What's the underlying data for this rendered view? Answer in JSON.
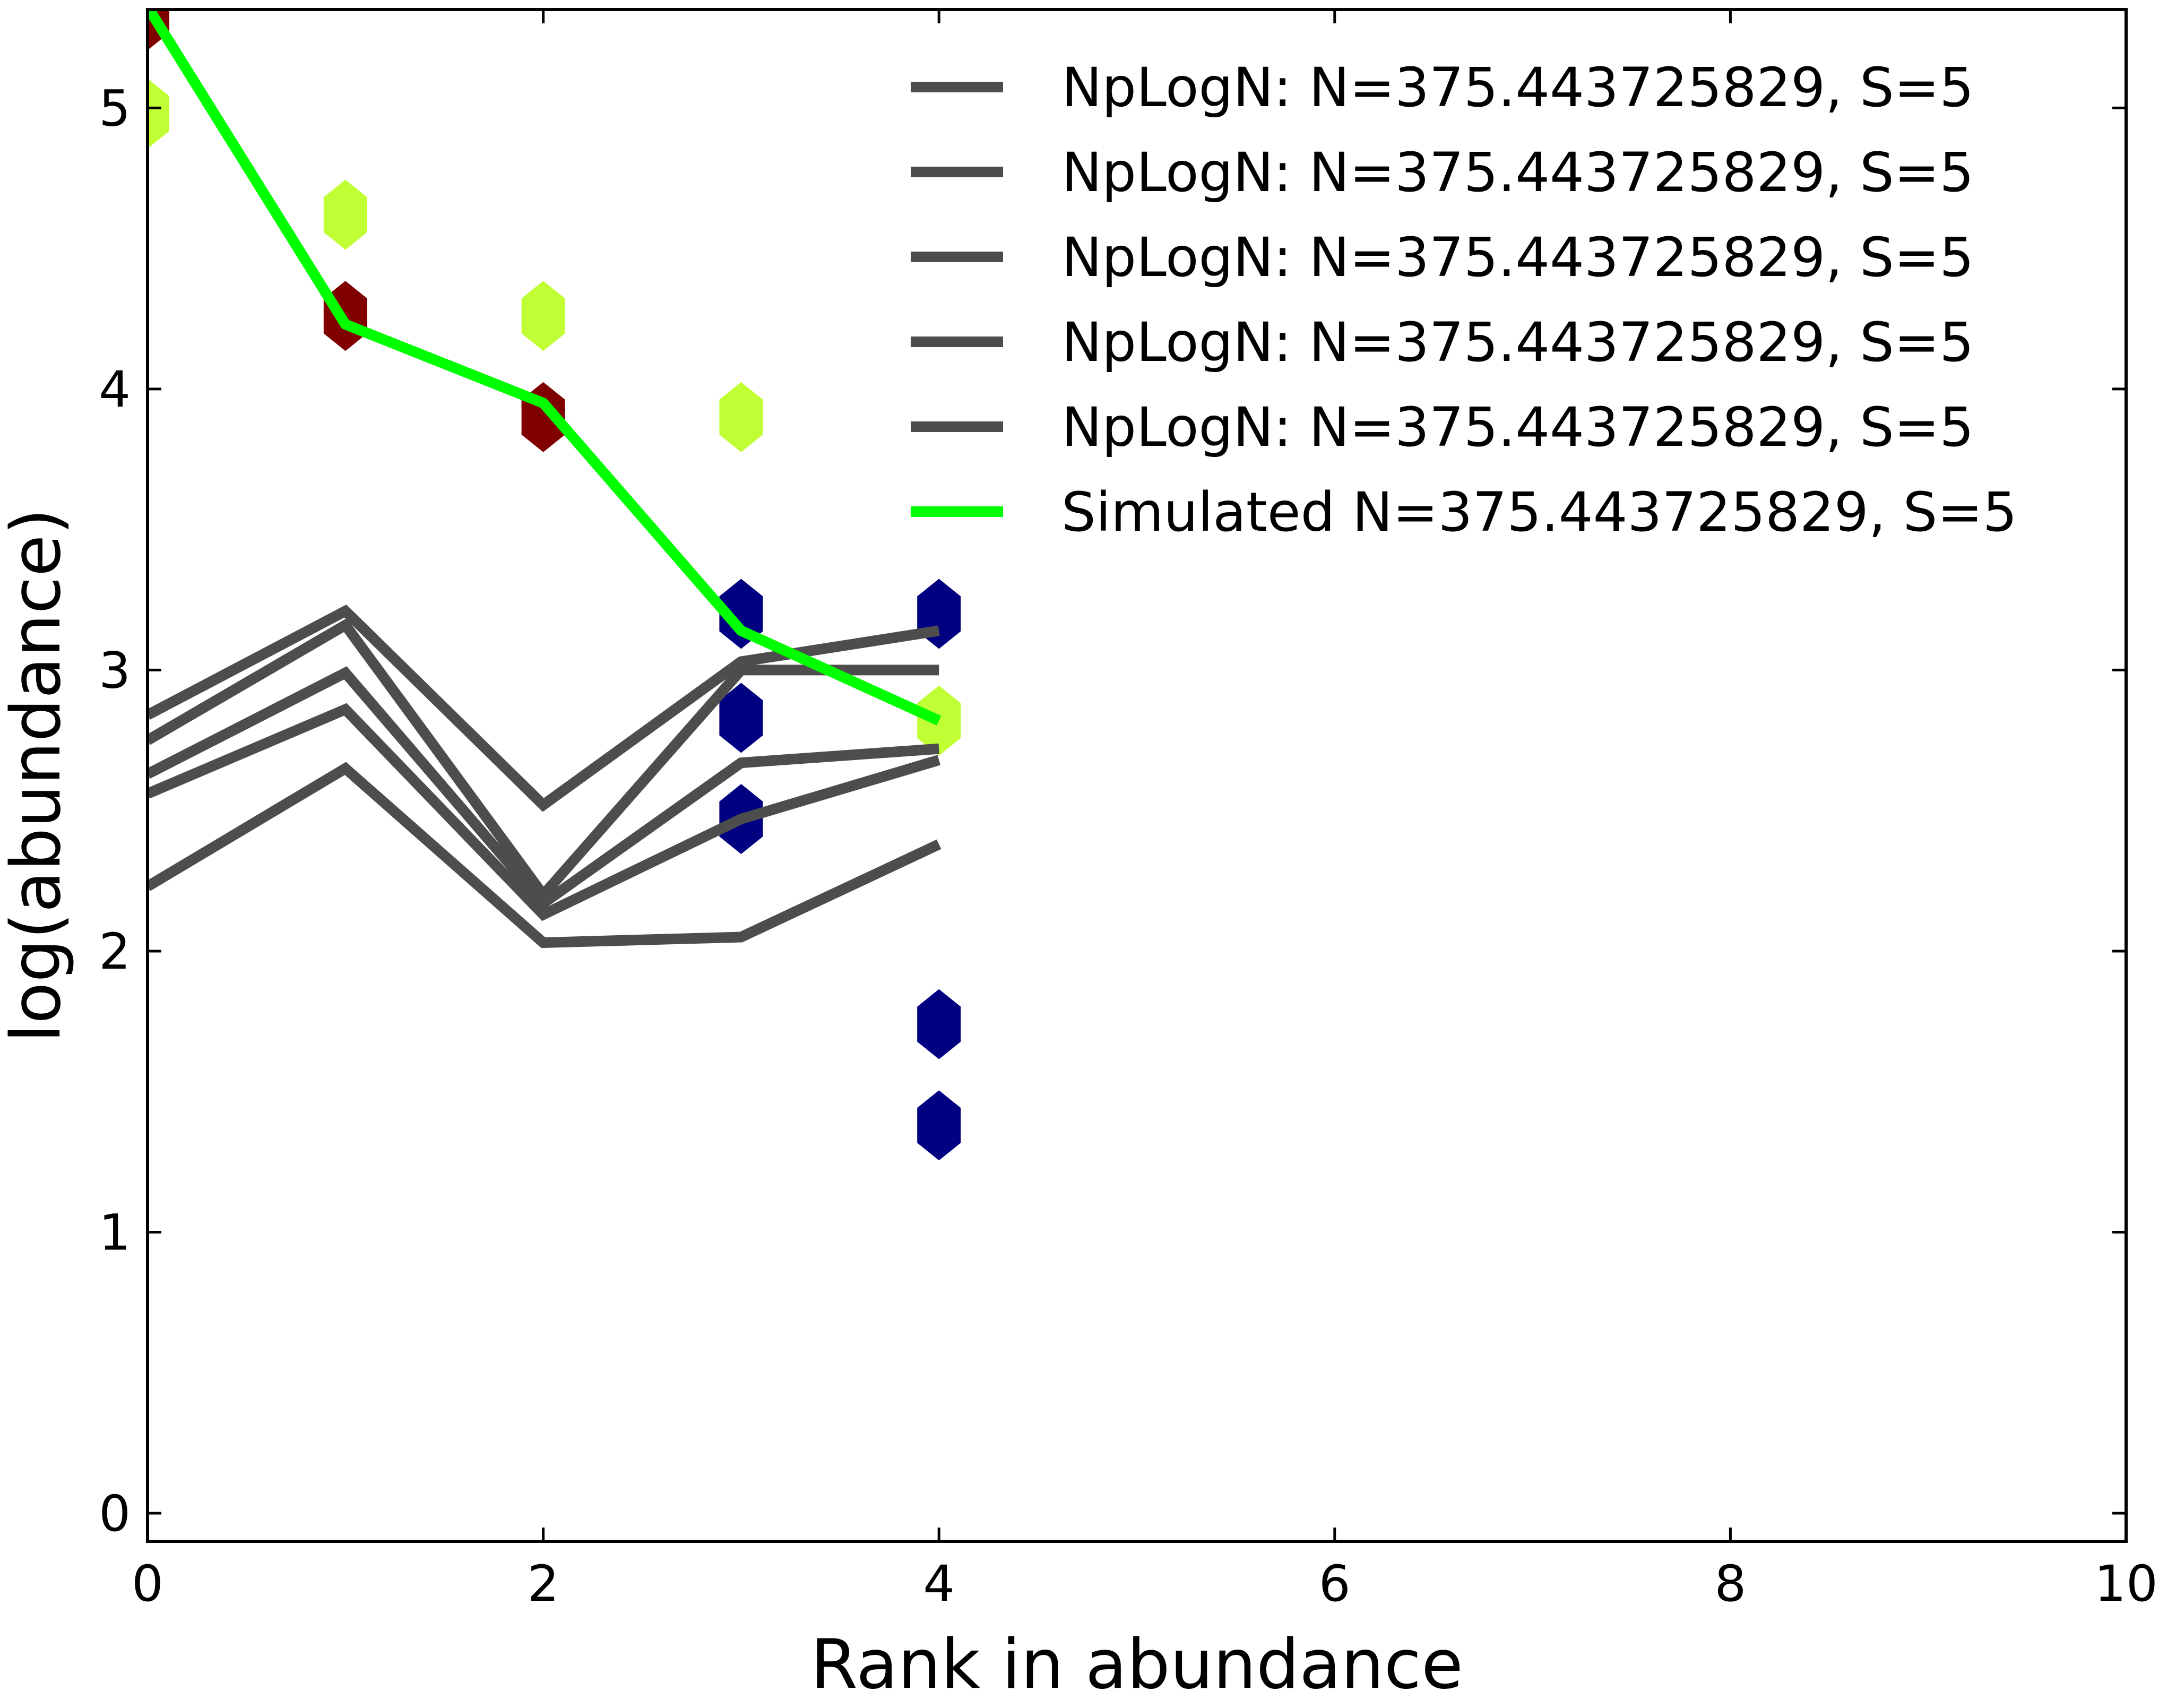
{
  "chart_data": {
    "type": "line",
    "xlabel": "Rank in abundance",
    "ylabel": "log(abundance)",
    "xlim": [
      0,
      10
    ],
    "ylim": [
      -0.1,
      5.35
    ],
    "xticks": [
      0,
      2,
      4,
      6,
      8,
      10
    ],
    "xtick_labels": [
      "0",
      "2",
      "4",
      "6",
      "8",
      "10"
    ],
    "yticks": [
      0,
      1,
      2,
      3,
      4,
      5
    ],
    "ytick_labels": [
      "0",
      "1",
      "2",
      "3",
      "4",
      "5"
    ],
    "grid": false,
    "legend_position": "top-right",
    "series": [
      {
        "name": "NpLogN: N=375.443725829, S=5",
        "color": "#4d4d4d",
        "x": [
          0,
          1,
          2,
          3,
          4
        ],
        "y": [
          2.84,
          3.21,
          2.52,
          3.03,
          3.14
        ]
      },
      {
        "name": "NpLogN: N=375.443725829, S=5",
        "color": "#4d4d4d",
        "x": [
          0,
          1,
          2,
          3,
          4
        ],
        "y": [
          2.75,
          3.16,
          2.2,
          3.0,
          3.0
        ]
      },
      {
        "name": "NpLogN: N=375.443725829, S=5",
        "color": "#4d4d4d",
        "x": [
          0,
          1,
          2,
          3,
          4
        ],
        "y": [
          2.63,
          2.99,
          2.17,
          2.67,
          2.72
        ]
      },
      {
        "name": "NpLogN: N=375.443725829, S=5",
        "color": "#4d4d4d",
        "x": [
          0,
          1,
          2,
          3,
          4
        ],
        "y": [
          2.56,
          2.86,
          2.13,
          2.47,
          2.68
        ]
      },
      {
        "name": "NpLogN: N=375.443725829, S=5",
        "color": "#4d4d4d",
        "x": [
          0,
          1,
          2,
          3,
          4
        ],
        "y": [
          2.23,
          2.65,
          2.03,
          2.05,
          2.38
        ]
      },
      {
        "name": "Simulated N=375.443725829, S=5",
        "color": "#00ff00",
        "x": [
          0,
          1,
          2,
          3,
          4
        ],
        "y": [
          5.36,
          4.23,
          3.95,
          3.14,
          2.82
        ]
      }
    ],
    "markers": [
      {
        "color": "#c0ff33",
        "x": [
          0,
          1,
          2,
          3,
          4
        ],
        "y": [
          4.98,
          4.62,
          4.26,
          3.9,
          2.82
        ]
      },
      {
        "color": "#800000",
        "x": [
          0,
          1,
          2
        ],
        "y": [
          5.33,
          4.26,
          3.9
        ]
      },
      {
        "color": "#000080",
        "x": [
          3,
          3,
          3,
          4,
          4,
          4
        ],
        "y": [
          3.2,
          2.83,
          2.47,
          3.2,
          1.74,
          1.38
        ]
      }
    ]
  }
}
